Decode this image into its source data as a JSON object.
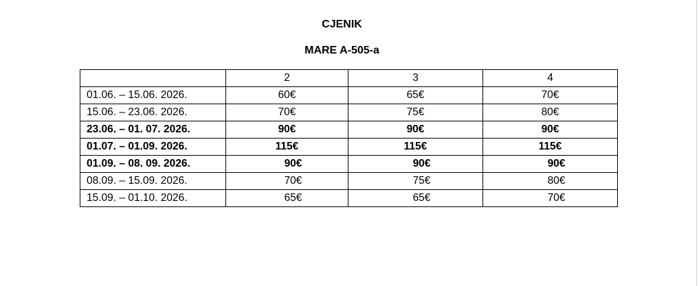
{
  "title": "CJENIK",
  "subtitle": "MARE A-505-a",
  "table": {
    "headers": [
      "",
      "2",
      "3",
      "4"
    ],
    "rows": [
      {
        "period": "01.06. – 15.06. 2026.",
        "p2": "60€",
        "p3": "65€",
        "p4": "70€",
        "bold": false
      },
      {
        "period": "15.06. – 23.06. 2026.",
        "p2": "70€",
        "p3": "75€",
        "p4": "80€",
        "bold": false
      },
      {
        "period": "23.06. – 01. 07. 2026.",
        "p2": "90€",
        "p3": "90€",
        "p4": "90€",
        "bold": true
      },
      {
        "period": "01.07. – 01.09. 2026.",
        "p2": "115€",
        "p3": "115€",
        "p4": "115€",
        "bold": true
      },
      {
        "period": "01.09. – 08. 09. 2026.",
        "p2": "90€",
        "p3": "90€",
        "p4": "90€",
        "bold": true
      },
      {
        "period": "08.09. – 15.09. 2026.",
        "p2": "70€",
        "p3": "75€",
        "p4": "80€",
        "bold": false
      },
      {
        "period": "15.09. – 01.10. 2026.",
        "p2": "65€",
        "p3": "65€",
        "p4": "70€",
        "bold": false
      }
    ]
  }
}
